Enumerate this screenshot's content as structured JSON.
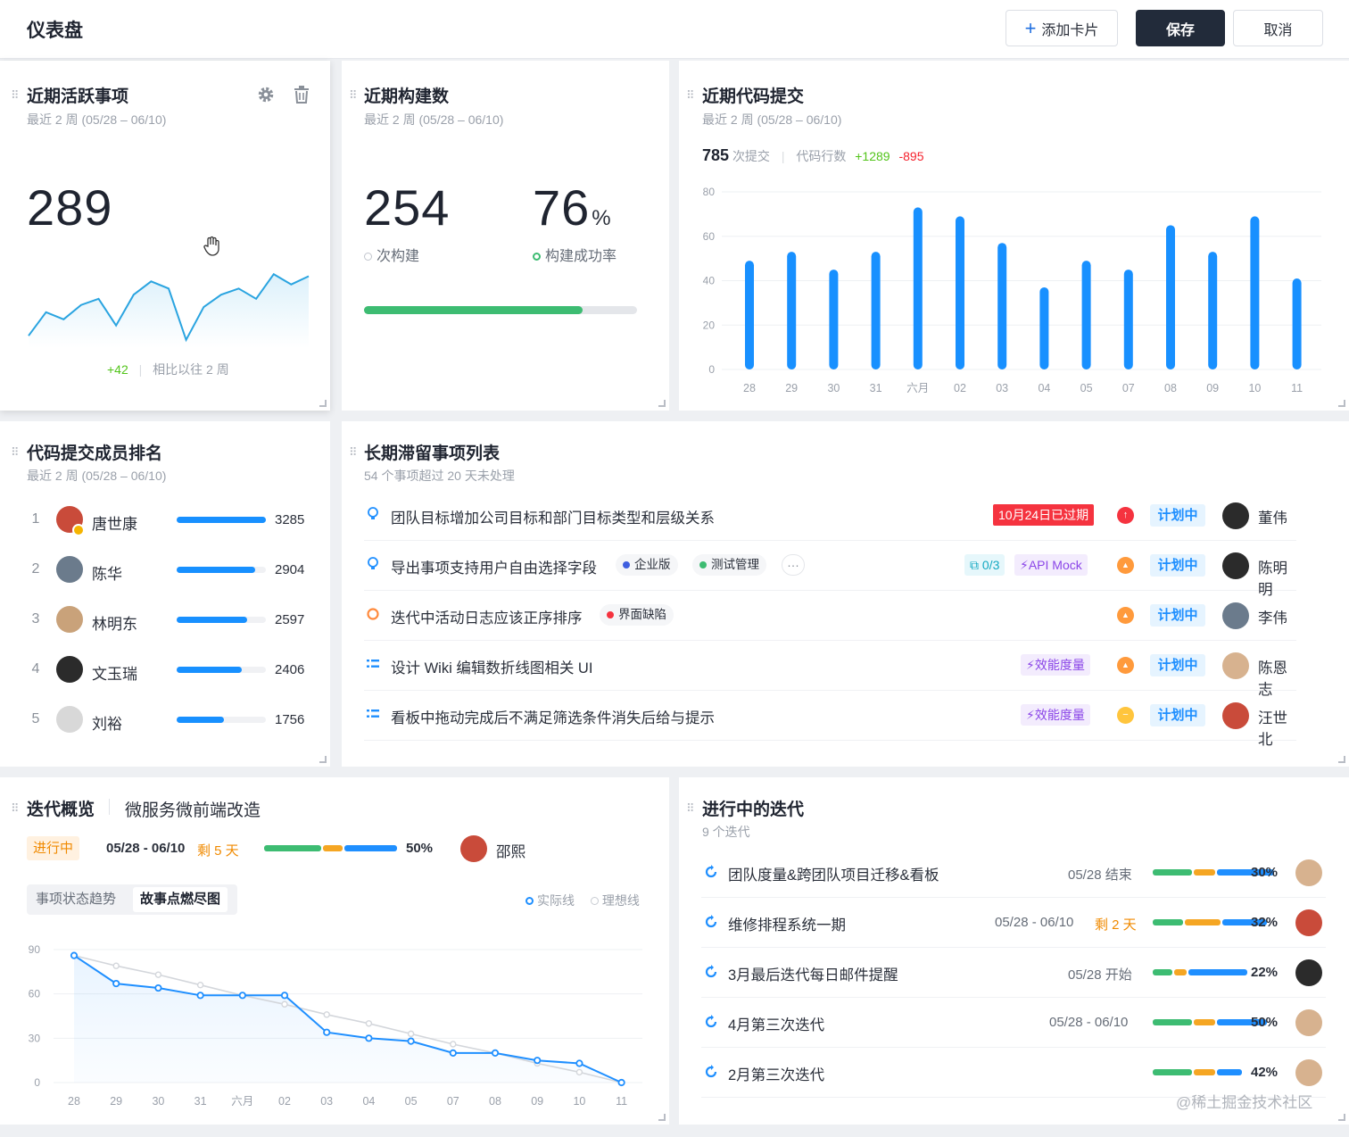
{
  "header": {
    "title": "仪表盘",
    "add_card": "添加卡片",
    "save": "保存",
    "cancel": "取消"
  },
  "colors": {
    "primary": "#1890ff",
    "green": "#3dbc72",
    "orange": "#f5a623",
    "dark": "#222b3a"
  },
  "card_active": {
    "title": "近期活跃事项",
    "subtitle": "最近 2 周 (05/28 – 06/10)",
    "value": "289",
    "delta": "+42",
    "compare": "相比以往 2 周",
    "icons": [
      "gear-icon",
      "trash-icon"
    ],
    "chart_data": {
      "type": "area",
      "values": [
        12,
        35,
        28,
        42,
        48,
        22,
        52,
        65,
        58,
        8,
        40,
        52,
        58,
        48,
        72,
        62,
        70
      ]
    }
  },
  "card_builds": {
    "title": "近期构建数",
    "subtitle": "最近 2 周 (05/28 – 06/10)",
    "count": "254",
    "count_label": "次构建",
    "rate": "76",
    "rate_unit": "%",
    "rate_label": "构建成功率",
    "progress": 0.8
  },
  "card_commits": {
    "title": "近期代码提交",
    "subtitle": "最近 2 周 (05/28 – 06/10)",
    "commits": "785",
    "commits_label": "次提交",
    "lines_label": "代码行数",
    "added": "+1289",
    "removed": "-895",
    "chart_data": {
      "type": "bar",
      "categories": [
        "28",
        "29",
        "30",
        "31",
        "六月",
        "02",
        "03",
        "04",
        "05",
        "07",
        "08",
        "09",
        "10",
        "11"
      ],
      "values": [
        49,
        53,
        45,
        53,
        73,
        69,
        57,
        37,
        49,
        45,
        65,
        53,
        69,
        41
      ],
      "ylim": [
        0,
        80
      ],
      "yticks": [
        "0",
        "20",
        "40",
        "60",
        "80"
      ]
    }
  },
  "card_rank": {
    "title": "代码提交成员排名",
    "subtitle": "最近 2 周 (05/28 – 06/10)",
    "max": 3285,
    "members": [
      {
        "rank": "1",
        "name": "唐世康",
        "value": "3285",
        "num": 3285,
        "color": "#c94b3a"
      },
      {
        "rank": "2",
        "name": "陈华",
        "value": "2904",
        "num": 2904,
        "color": "#6b7b8c"
      },
      {
        "rank": "3",
        "name": "林明东",
        "value": "2597",
        "num": 2597,
        "color": "#c9a27a"
      },
      {
        "rank": "4",
        "name": "文玉瑞",
        "value": "2406",
        "num": 2406,
        "color": "#2b2b2b"
      },
      {
        "rank": "5",
        "name": "刘裕",
        "value": "1756",
        "num": 1756,
        "color": "#d8d8d8"
      }
    ]
  },
  "card_stale": {
    "title": "长期滞留事项列表",
    "subtitle": "54 个事项超过 20 天未处理",
    "items": [
      {
        "title": "团队目标增加公司目标和部门目标类型和层级关系",
        "icon": "bulb-icon",
        "overdue": "10月24日已过期",
        "status": "计划中",
        "owner": "董伟",
        "prio_color": "#f5333f"
      },
      {
        "title": "导出事项支持用户自由选择字段",
        "icon": "bulb-icon",
        "tag1": "企业版",
        "tag2": "测试管理",
        "more": "···",
        "sub": "0/3",
        "api": "API Mock",
        "status": "计划中",
        "owner": "陈明明",
        "prio_color": "#ff9a3c"
      },
      {
        "title": "迭代中活动日志应该正序排序",
        "icon": "circle-icon",
        "tag1": "界面缺陷",
        "status": "计划中",
        "owner": "李伟",
        "prio_color": "#ff9a3c"
      },
      {
        "title": "设计 Wiki 编辑数折线图相关 UI",
        "icon": "list-icon",
        "effect": "效能度量",
        "status": "计划中",
        "owner": "陈恩志",
        "prio_color": "#ff9a3c"
      },
      {
        "title": "看板中拖动完成后不满足筛选条件消失后给与提示",
        "icon": "list-icon",
        "effect": "效能度量",
        "status": "计划中",
        "owner": "汪世北",
        "prio_color": "#ffc53d"
      }
    ]
  },
  "card_iter": {
    "title": "迭代概览",
    "project": "微服务微前端改造",
    "state": "进行中",
    "range": "05/28 - 06/10",
    "remain": "剩 5 天",
    "percent": "50%",
    "owner": "邵熙",
    "tab1": "事项状态趋势",
    "tab2": "故事点燃尽图",
    "legend_actual": "实际线",
    "legend_ideal": "理想线",
    "chart_data": {
      "type": "line",
      "categories": [
        "28",
        "29",
        "30",
        "31",
        "六月",
        "02",
        "03",
        "04",
        "05",
        "07",
        "08",
        "09",
        "10",
        "11"
      ],
      "ylim": [
        0,
        90
      ],
      "yticks": [
        "0",
        "30",
        "60",
        "90"
      ],
      "series": [
        {
          "name": "实际线",
          "values": [
            86,
            67,
            64,
            59,
            59,
            59,
            34,
            30,
            28,
            20,
            20,
            15,
            13,
            0
          ]
        },
        {
          "name": "理想线",
          "values": [
            86,
            79,
            73,
            66,
            59,
            53,
            46,
            40,
            33,
            26,
            20,
            13,
            7,
            0
          ]
        }
      ]
    }
  },
  "card_ongoing": {
    "title": "进行中的迭代",
    "subtitle": "9 个迭代",
    "items": [
      {
        "name": "团队度量&跨团队项目迁移&看板",
        "date": "05/28 结束",
        "remain": "",
        "percent": "30%",
        "avatar": "#d7b28f"
      },
      {
        "name": "维修排程系统一期",
        "date": "05/28 - 06/10",
        "remain": "剩 2 天",
        "percent": "32%",
        "avatar": "#c94b3a"
      },
      {
        "name": "3月最后迭代每日邮件提醒",
        "date": "05/28 开始",
        "remain": "",
        "percent": "22%",
        "avatar": "#2b2b2b"
      },
      {
        "name": "4月第三次迭代",
        "date": "05/28 - 06/10",
        "remain": "",
        "percent": "50%",
        "avatar": "#d7b28f"
      },
      {
        "name": "2月第三次迭代",
        "date": "",
        "remain": "",
        "percent": "42%",
        "avatar": "#d7b28f"
      }
    ]
  },
  "watermark": "@稀土掘金技术社区"
}
